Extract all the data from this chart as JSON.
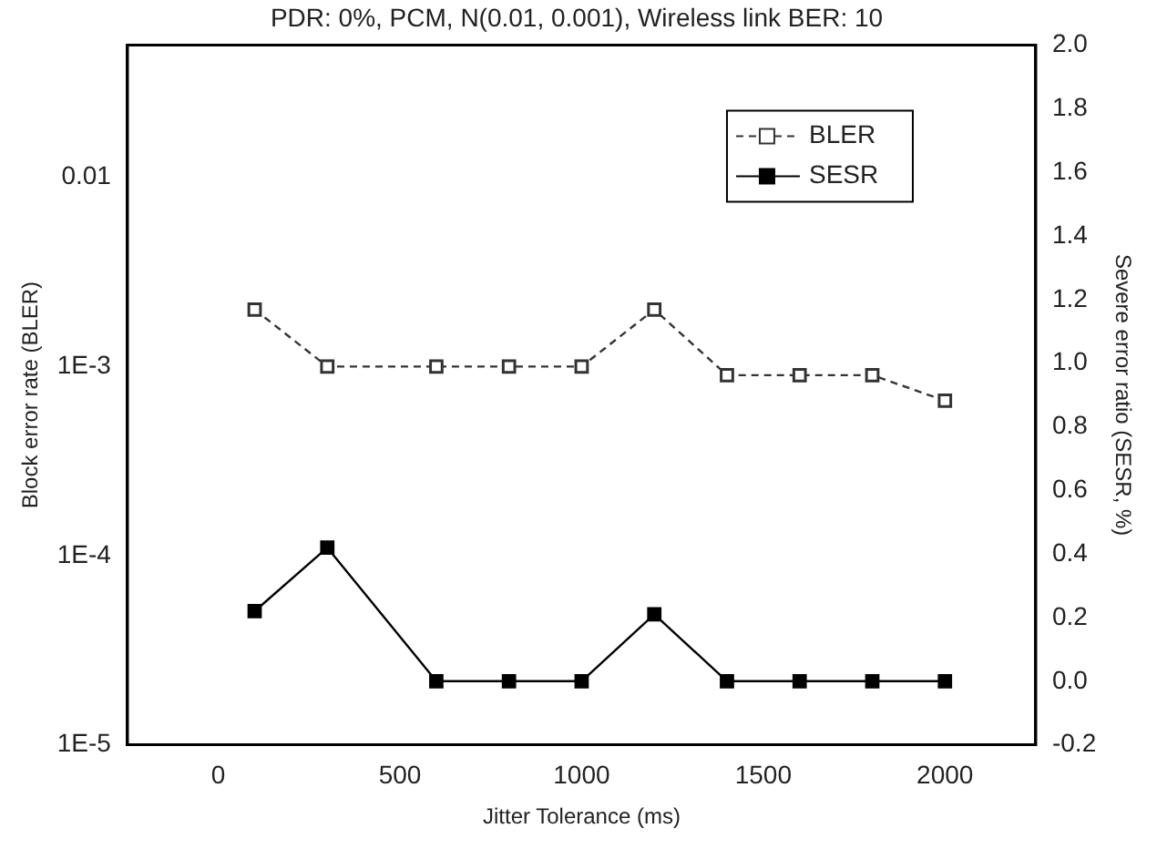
{
  "chart_data": {
    "type": "line",
    "title": "PDR: 0%, PCM, N(0.01, 0.001), Wireless link BER: 10",
    "xlabel": "Jitter Tolerance (ms)",
    "ylabel": "Block error rate (BLER)",
    "y2label": "Severe error ratio (SESR, %)",
    "x": [
      100,
      300,
      600,
      800,
      1000,
      1200,
      1400,
      1600,
      1800,
      2000
    ],
    "series": [
      {
        "name": "BLER",
        "color": "#333333",
        "line_style": "dashed",
        "values": [
          0.002,
          0.001,
          0.001,
          0.001,
          0.001,
          0.002,
          0.0009,
          0.0009,
          0.0009,
          0.00066
        ]
      },
      {
        "name": "SESR",
        "color": "#000000",
        "line_style": "solid",
        "axis": "y2",
        "values": [
          0.22,
          0.42,
          0,
          0,
          0,
          0.21,
          0,
          0,
          0,
          0
        ]
      }
    ],
    "marker": "square",
    "log": "y",
    "legend": "top right",
    "xlim": [
      -250,
      2250
    ],
    "xticks": [
      0,
      500,
      1000,
      1500,
      2000
    ],
    "ylim": [
      1e-05,
      0.05
    ],
    "yticks": [
      {
        "value": 1e-05,
        "label": "1E-5"
      },
      {
        "value": 0.0001,
        "label": "1E-4"
      },
      {
        "value": 0.001,
        "label": "1E-3"
      },
      {
        "value": 0.01,
        "label": "0.01"
      }
    ],
    "y2lim": [
      -0.2,
      2.0
    ],
    "y2ticks": [
      {
        "value": -0.2,
        "label": "-0.2"
      },
      {
        "value": 0,
        "label": "0.0"
      },
      {
        "value": 0.2,
        "label": "0.2"
      },
      {
        "value": 0.4,
        "label": "0.4"
      },
      {
        "value": 0.6,
        "label": "0.6"
      },
      {
        "value": 0.8,
        "label": "0.8"
      },
      {
        "value": 1,
        "label": "1.0"
      },
      {
        "value": 1.2,
        "label": "1.2"
      },
      {
        "value": 1.4,
        "label": "1.4"
      },
      {
        "value": 1.6,
        "label": "1.6"
      },
      {
        "value": 1.8,
        "label": "1.8"
      },
      {
        "value": 2,
        "label": "2.0"
      }
    ]
  }
}
